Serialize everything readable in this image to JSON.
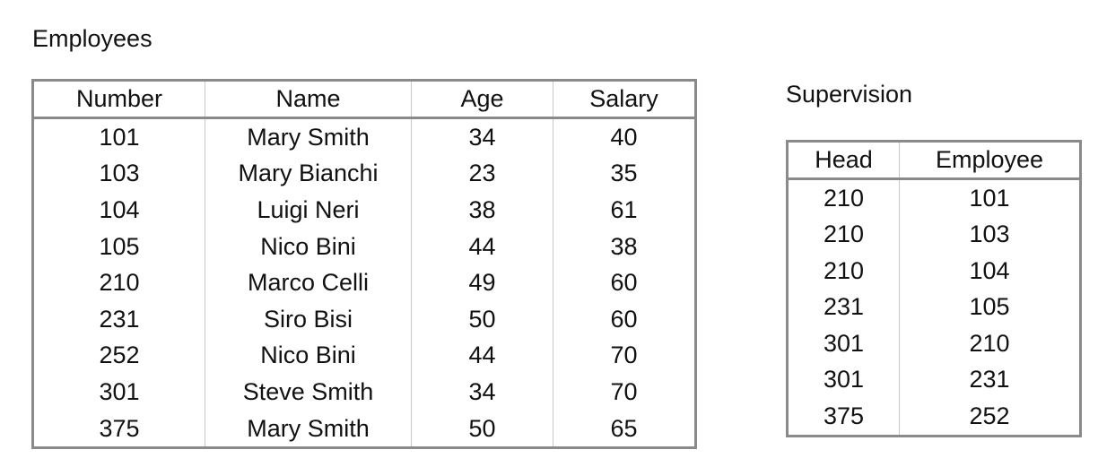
{
  "employees": {
    "caption": "Employees",
    "columns": [
      "Number",
      "Name",
      "Age",
      "Salary"
    ],
    "rows": [
      [
        "101",
        "Mary Smith",
        "34",
        "40"
      ],
      [
        "103",
        "Mary Bianchi",
        "23",
        "35"
      ],
      [
        "104",
        "Luigi Neri",
        "38",
        "61"
      ],
      [
        "105",
        "Nico Bini",
        "44",
        "38"
      ],
      [
        "210",
        "Marco Celli",
        "49",
        "60"
      ],
      [
        "231",
        "Siro Bisi",
        "50",
        "60"
      ],
      [
        "252",
        "Nico Bini",
        "44",
        "70"
      ],
      [
        "301",
        "Steve Smith",
        "34",
        "70"
      ],
      [
        "375",
        "Mary Smith",
        "50",
        "65"
      ]
    ]
  },
  "supervision": {
    "caption": "Supervision",
    "columns": [
      "Head",
      "Employee"
    ],
    "rows": [
      [
        "210",
        "101"
      ],
      [
        "210",
        "103"
      ],
      [
        "210",
        "104"
      ],
      [
        "231",
        "105"
      ],
      [
        "301",
        "210"
      ],
      [
        "301",
        "231"
      ],
      [
        "375",
        "252"
      ]
    ]
  }
}
